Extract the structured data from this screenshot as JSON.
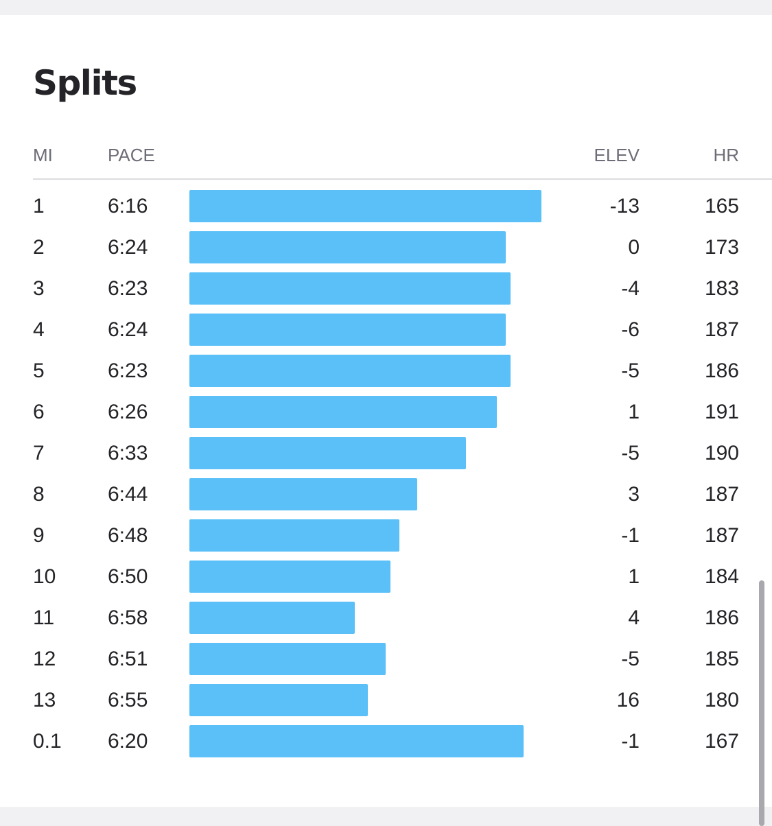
{
  "title": "Splits",
  "headers": {
    "mi": "MI",
    "pace": "PACE",
    "elev": "ELEV",
    "hr": "HR"
  },
  "accent_color": "#5bc0f8",
  "splits": [
    {
      "mi": "1",
      "pace": "6:16",
      "pace_seconds": 376,
      "elev": "-13",
      "hr": "165"
    },
    {
      "mi": "2",
      "pace": "6:24",
      "pace_seconds": 384,
      "elev": "0",
      "hr": "173"
    },
    {
      "mi": "3",
      "pace": "6:23",
      "pace_seconds": 383,
      "elev": "-4",
      "hr": "183"
    },
    {
      "mi": "4",
      "pace": "6:24",
      "pace_seconds": 384,
      "elev": "-6",
      "hr": "187"
    },
    {
      "mi": "5",
      "pace": "6:23",
      "pace_seconds": 383,
      "elev": "-5",
      "hr": "186"
    },
    {
      "mi": "6",
      "pace": "6:26",
      "pace_seconds": 386,
      "elev": "1",
      "hr": "191"
    },
    {
      "mi": "7",
      "pace": "6:33",
      "pace_seconds": 393,
      "elev": "-5",
      "hr": "190"
    },
    {
      "mi": "8",
      "pace": "6:44",
      "pace_seconds": 404,
      "elev": "3",
      "hr": "187"
    },
    {
      "mi": "9",
      "pace": "6:48",
      "pace_seconds": 408,
      "elev": "-1",
      "hr": "187"
    },
    {
      "mi": "10",
      "pace": "6:50",
      "pace_seconds": 410,
      "elev": "1",
      "hr": "184"
    },
    {
      "mi": "11",
      "pace": "6:58",
      "pace_seconds": 418,
      "elev": "4",
      "hr": "186"
    },
    {
      "mi": "12",
      "pace": "6:51",
      "pace_seconds": 411,
      "elev": "-5",
      "hr": "185"
    },
    {
      "mi": "13",
      "pace": "6:55",
      "pace_seconds": 415,
      "elev": "16",
      "hr": "180"
    },
    {
      "mi": "0.1",
      "pace": "6:20",
      "pace_seconds": 380,
      "elev": "-1",
      "hr": "167"
    }
  ]
}
